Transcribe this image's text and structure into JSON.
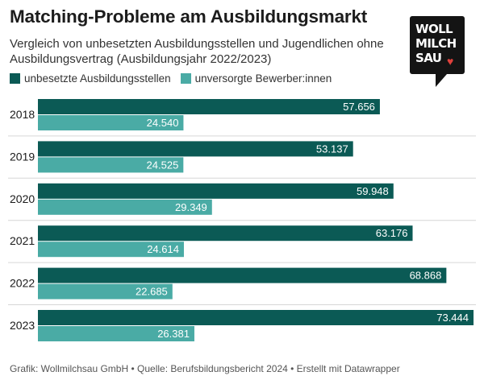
{
  "header": {
    "title": "Matching-Probleme am Ausbildungsmarkt",
    "subtitle": "Vergleich von unbesetzten Ausbildungsstellen und Jugendlichen ohne Ausbildungsvertrag (Ausbildungsjahr 2022/2023)"
  },
  "logo": {
    "line1": "WOLL",
    "line2": "MILCH",
    "line3": "SAU",
    "heart": "♥"
  },
  "colors": {
    "series1": "#0b5a55",
    "series2": "#4aaba5",
    "divider": "#d6d6d6",
    "heart": "#e0413c"
  },
  "chart_data": {
    "type": "bar",
    "orientation": "horizontal",
    "title": "Matching-Probleme am Ausbildungsmarkt",
    "categories": [
      "2018",
      "2019",
      "2020",
      "2021",
      "2022",
      "2023"
    ],
    "series": [
      {
        "name": "unbesetzte Ausbildungsstellen",
        "values": [
          57656,
          53137,
          59948,
          63176,
          68868,
          73444
        ],
        "labels": [
          "57.656",
          "53.137",
          "59.948",
          "63.176",
          "68.868",
          "73.444"
        ]
      },
      {
        "name": "unversorgte Bewerber:innen",
        "values": [
          24540,
          24525,
          29349,
          24614,
          22685,
          26381
        ],
        "labels": [
          "24.540",
          "24.525",
          "29.349",
          "24.614",
          "22.685",
          "26.381"
        ]
      }
    ],
    "xlim": [
      0,
      73444
    ],
    "legend_position": "top-left",
    "grid": false
  },
  "footer": {
    "text": "Grafik: Wollmilchsau GmbH • Quelle: Berufsbildungsbericht 2024 • Erstellt mit Datawrapper"
  }
}
